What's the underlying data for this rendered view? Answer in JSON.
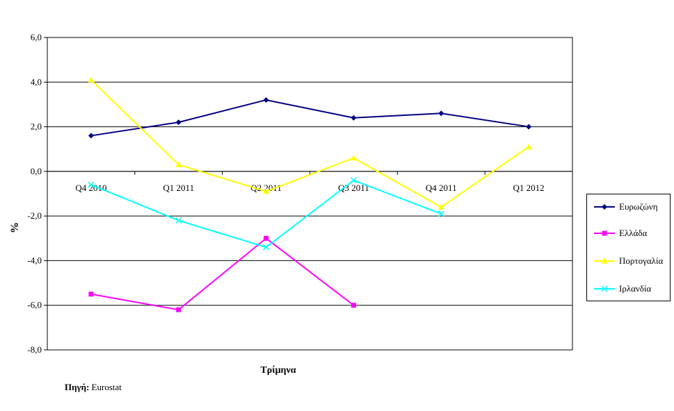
{
  "chart_data": {
    "type": "line",
    "xlabel": "Τρίμηνα",
    "ylabel": "%",
    "categories": [
      "Q4 2010",
      "Q1 2011",
      "Q2 2011",
      "Q3 2011",
      "Q4 2011",
      "Q1 2012"
    ],
    "ylim": [
      -8,
      6
    ],
    "yticks": [
      "-8,0",
      "-6,0",
      "-4,0",
      "-2,0",
      "0,0",
      "2,0",
      "4,0",
      "6,0"
    ],
    "grid": true,
    "legend_position": "right",
    "series": [
      {
        "name": "Ευρωζώνη",
        "color": "#000080",
        "marker": "diamond",
        "values": [
          1.6,
          2.2,
          3.2,
          2.4,
          2.6,
          2.0
        ]
      },
      {
        "name": "Ελλάδα",
        "color": "#FF00FF",
        "marker": "square",
        "values": [
          -5.5,
          -6.2,
          -3.0,
          -6.0,
          null,
          null
        ]
      },
      {
        "name": "Πορτογαλία",
        "color": "#FFFF00",
        "marker": "triangle",
        "values": [
          4.1,
          0.3,
          -0.9,
          0.6,
          -1.6,
          1.1
        ]
      },
      {
        "name": "Ιρλανδία",
        "color": "#00FFFF",
        "marker": "x",
        "values": [
          -0.6,
          -2.2,
          -3.4,
          -0.4,
          -1.9,
          null
        ]
      }
    ]
  },
  "source": {
    "label": "Πηγή:",
    "value": "Eurostat"
  }
}
